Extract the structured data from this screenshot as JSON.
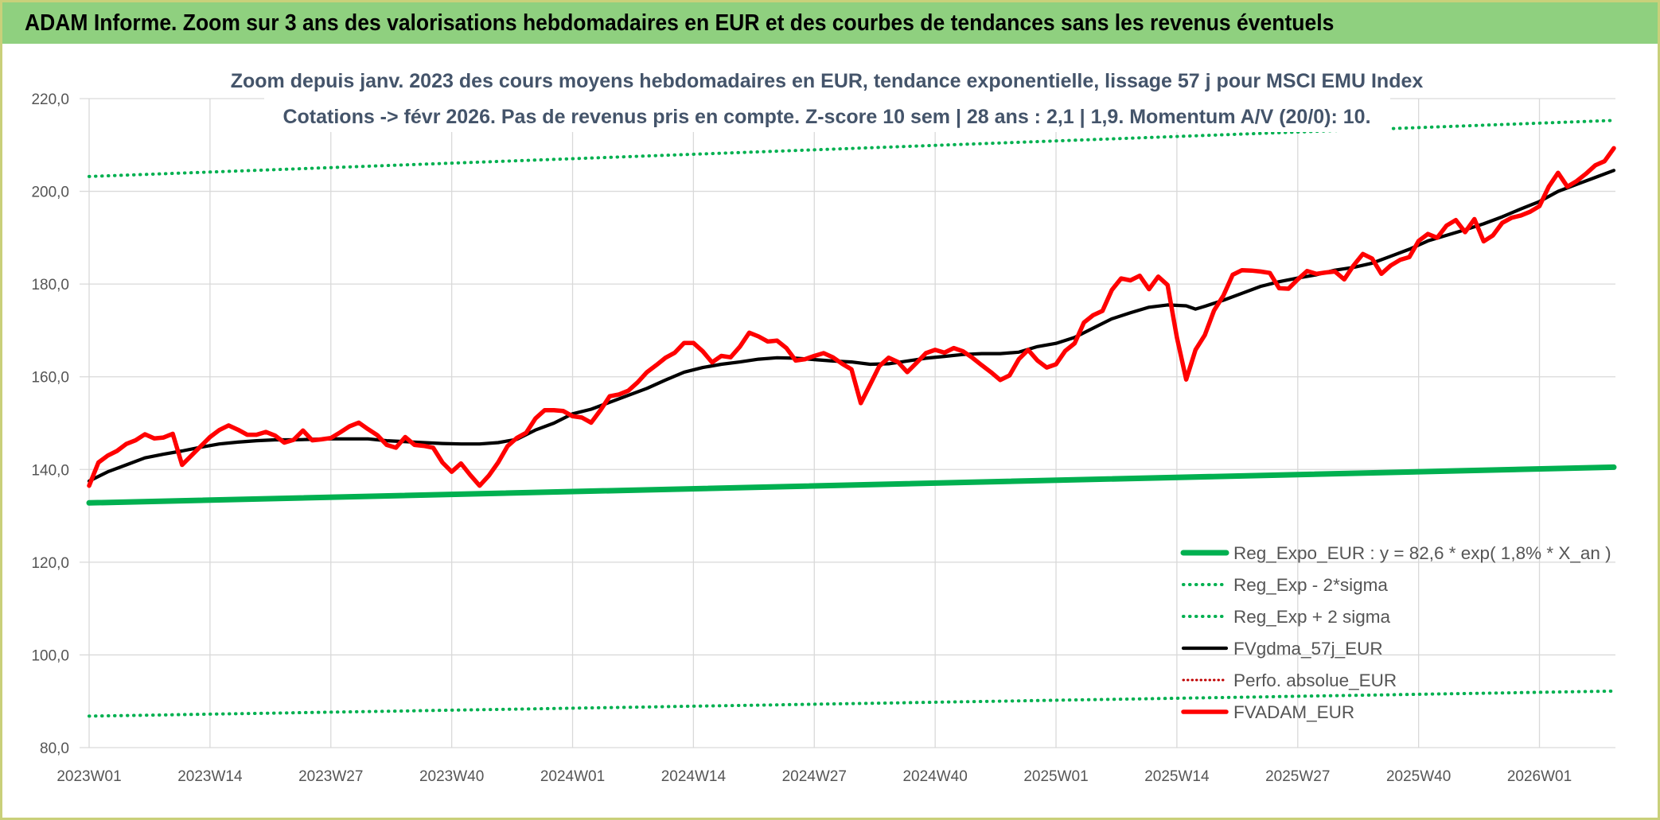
{
  "header": {
    "title": "ADAM Informe. Zoom sur 3 ans des valorisations hebdomadaires en EUR et des courbes de tendances sans les revenus éventuels"
  },
  "chart_data": {
    "type": "line",
    "title_lines": [
      "Zoom depuis janv. 2023 des cours moyens hebdomadaires en EUR, tendance exponentielle, lissage 57 j pour MSCI EMU Index",
      "Cotations -> févr 2026. Pas de revenus pris en compte. Z-score 10 sem | 28 ans : 2,1 | 1,9. Momentum A/V (20/0): 10."
    ],
    "x_tick_labels": [
      "2023W01",
      "2023W14",
      "2023W27",
      "2023W40",
      "2024W01",
      "2024W14",
      "2024W27",
      "2024W40",
      "2025W01",
      "2025W14",
      "2025W27",
      "2025W40",
      "2026W01"
    ],
    "x_tick_weeks": [
      0,
      13,
      26,
      39,
      52,
      65,
      78,
      91,
      104,
      117,
      130,
      143,
      156
    ],
    "weeks_total": 164,
    "y_tick_labels": [
      "80,0",
      "100,0",
      "120,0",
      "140,0",
      "160,0",
      "180,0",
      "200,0",
      "220,0"
    ],
    "y_ticks": [
      80,
      100,
      120,
      140,
      160,
      180,
      200,
      220
    ],
    "ylim": [
      80,
      220
    ],
    "grid": true,
    "legend_position": "bottom-right",
    "colors": {
      "reg_expo": "#00b050",
      "sigma": "#00b050",
      "gdma": "#000000",
      "perfo": "#c00000",
      "adam": "#ff0000",
      "grid": "#d9d9d9"
    },
    "series": [
      {
        "key": "reg_expo",
        "name": "Reg_Expo_EUR : y = 82,6 * exp( 1,8% *  X_an )",
        "style": "solid-thick",
        "points": [
          [
            0,
            132.8
          ],
          [
            164,
            140.5
          ]
        ]
      },
      {
        "key": "minus_2sigma",
        "name": "Reg_Exp - 2*sigma",
        "style": "dotted",
        "points": [
          [
            0,
            86.8
          ],
          [
            164,
            92.2
          ]
        ]
      },
      {
        "key": "plus_2sigma",
        "name": "Reg_Exp + 2 sigma",
        "style": "dotted",
        "points": [
          [
            0,
            203.2
          ],
          [
            164,
            215.3
          ]
        ]
      },
      {
        "key": "gdma",
        "name": "FVgdma_57j_EUR",
        "style": "solid",
        "points": [
          [
            0,
            137.5
          ],
          [
            2,
            139.5
          ],
          [
            4,
            141
          ],
          [
            6,
            142.5
          ],
          [
            8,
            143.3
          ],
          [
            10,
            144
          ],
          [
            12,
            144.8
          ],
          [
            14,
            145.5
          ],
          [
            16,
            145.9
          ],
          [
            18,
            146.2
          ],
          [
            20,
            146.4
          ],
          [
            22,
            146.4
          ],
          [
            24,
            146.5
          ],
          [
            26,
            146.6
          ],
          [
            28,
            146.6
          ],
          [
            30,
            146.6
          ],
          [
            32,
            146.2
          ],
          [
            34,
            146
          ],
          [
            36,
            145.8
          ],
          [
            38,
            145.6
          ],
          [
            40,
            145.5
          ],
          [
            42,
            145.5
          ],
          [
            44,
            145.8
          ],
          [
            46,
            146.5
          ],
          [
            48,
            148.5
          ],
          [
            50,
            150
          ],
          [
            52,
            152
          ],
          [
            54,
            153
          ],
          [
            56,
            154.5
          ],
          [
            58,
            156
          ],
          [
            60,
            157.5
          ],
          [
            62,
            159.3
          ],
          [
            64,
            161
          ],
          [
            66,
            162
          ],
          [
            68,
            162.7
          ],
          [
            70,
            163.2
          ],
          [
            72,
            163.8
          ],
          [
            74,
            164.1
          ],
          [
            76,
            164
          ],
          [
            78,
            163.7
          ],
          [
            80,
            163.4
          ],
          [
            82,
            163.2
          ],
          [
            84,
            162.7
          ],
          [
            86,
            162.8
          ],
          [
            88,
            163.4
          ],
          [
            90,
            164
          ],
          [
            92,
            164.4
          ],
          [
            94,
            164.8
          ],
          [
            96,
            165
          ],
          [
            98,
            165
          ],
          [
            100,
            165.3
          ],
          [
            102,
            166.5
          ],
          [
            104,
            167.2
          ],
          [
            106,
            168.5
          ],
          [
            108,
            170.5
          ],
          [
            110,
            172.5
          ],
          [
            112,
            173.8
          ],
          [
            114,
            175
          ],
          [
            116,
            175.5
          ],
          [
            118,
            175.3
          ],
          [
            119,
            174.6
          ],
          [
            120,
            175.2
          ],
          [
            122,
            176.5
          ],
          [
            124,
            178
          ],
          [
            126,
            179.5
          ],
          [
            128,
            180.5
          ],
          [
            130,
            181.3
          ],
          [
            132,
            182
          ],
          [
            134,
            183
          ],
          [
            136,
            183.6
          ],
          [
            138,
            184.5
          ],
          [
            140,
            186
          ],
          [
            142,
            187.5
          ],
          [
            144,
            189.3
          ],
          [
            146,
            190.5
          ],
          [
            148,
            191.7
          ],
          [
            150,
            193
          ],
          [
            152,
            194.5
          ],
          [
            154,
            196.2
          ],
          [
            156,
            197.8
          ],
          [
            158,
            200
          ],
          [
            160,
            201.5
          ],
          [
            162,
            203
          ],
          [
            164,
            204.5
          ]
        ]
      },
      {
        "key": "perfo",
        "name": "Perfo. absolue_EUR",
        "style": "dotted",
        "points": []
      },
      {
        "key": "adam",
        "name": "FVADAM_EUR",
        "style": "solid-thick",
        "points": [
          [
            0,
            136.5
          ],
          [
            1,
            141.5
          ],
          [
            2,
            143
          ],
          [
            3,
            144
          ],
          [
            4,
            145.5
          ],
          [
            5,
            146.3
          ],
          [
            6,
            147.6
          ],
          [
            7,
            146.7
          ],
          [
            8,
            146.9
          ],
          [
            9,
            147.7
          ],
          [
            10,
            141
          ],
          [
            11,
            143
          ],
          [
            12,
            145
          ],
          [
            13,
            147
          ],
          [
            14,
            148.5
          ],
          [
            15,
            149.5
          ],
          [
            16,
            148.6
          ],
          [
            17,
            147.5
          ],
          [
            18,
            147.5
          ],
          [
            19,
            148.1
          ],
          [
            20,
            147.3
          ],
          [
            21,
            145.8
          ],
          [
            22,
            146.4
          ],
          [
            23,
            148.4
          ],
          [
            24,
            146.3
          ],
          [
            25,
            146.5
          ],
          [
            26,
            146.8
          ],
          [
            27,
            148
          ],
          [
            28,
            149.3
          ],
          [
            29,
            150.1
          ],
          [
            30,
            148.7
          ],
          [
            31,
            147.4
          ],
          [
            32,
            145.3
          ],
          [
            33,
            144.7
          ],
          [
            34,
            147
          ],
          [
            35,
            145.3
          ],
          [
            36,
            145.1
          ],
          [
            37,
            144.7
          ],
          [
            38,
            141.5
          ],
          [
            39,
            139.5
          ],
          [
            40,
            141.3
          ],
          [
            41,
            138.8
          ],
          [
            42,
            136.5
          ],
          [
            43,
            138.7
          ],
          [
            44,
            141.5
          ],
          [
            45,
            145
          ],
          [
            46,
            146.8
          ],
          [
            47,
            147.9
          ],
          [
            48,
            151
          ],
          [
            49,
            152.8
          ],
          [
            50,
            152.8
          ],
          [
            51,
            152.6
          ],
          [
            52,
            151.5
          ],
          [
            53,
            151.2
          ],
          [
            54,
            150.1
          ],
          [
            55,
            152.8
          ],
          [
            56,
            155.8
          ],
          [
            57,
            156.2
          ],
          [
            58,
            157
          ],
          [
            59,
            158.8
          ],
          [
            60,
            161
          ],
          [
            61,
            162.5
          ],
          [
            62,
            164.1
          ],
          [
            63,
            165.2
          ],
          [
            64,
            167.3
          ],
          [
            65,
            167.3
          ],
          [
            66,
            165.5
          ],
          [
            67,
            163.1
          ],
          [
            68,
            164.5
          ],
          [
            69,
            164.2
          ],
          [
            70,
            166.5
          ],
          [
            71,
            169.5
          ],
          [
            72,
            168.7
          ],
          [
            73,
            167.6
          ],
          [
            74,
            167.8
          ],
          [
            75,
            166.2
          ],
          [
            76,
            163.5
          ],
          [
            77,
            163.8
          ],
          [
            78,
            164.5
          ],
          [
            79,
            165.1
          ],
          [
            80,
            164.2
          ],
          [
            81,
            162.8
          ],
          [
            82,
            161.6
          ],
          [
            83,
            154.3
          ],
          [
            84,
            158.3
          ],
          [
            85,
            162.3
          ],
          [
            86,
            164.1
          ],
          [
            87,
            163.2
          ],
          [
            88,
            161
          ],
          [
            89,
            163
          ],
          [
            90,
            165.1
          ],
          [
            91,
            165.8
          ],
          [
            92,
            165.2
          ],
          [
            93,
            166.2
          ],
          [
            94,
            165.5
          ],
          [
            95,
            164.1
          ],
          [
            96,
            162.5
          ],
          [
            97,
            161
          ],
          [
            98,
            159.3
          ],
          [
            99,
            160.3
          ],
          [
            100,
            163.8
          ],
          [
            101,
            165.8
          ],
          [
            102,
            163.5
          ],
          [
            103,
            162
          ],
          [
            104,
            162.7
          ],
          [
            105,
            165.6
          ],
          [
            106,
            167.2
          ],
          [
            107,
            171.7
          ],
          [
            108,
            173.3
          ],
          [
            109,
            174.2
          ],
          [
            110,
            178.7
          ],
          [
            111,
            181.2
          ],
          [
            112,
            180.8
          ],
          [
            113,
            181.8
          ],
          [
            114,
            178.9
          ],
          [
            115,
            181.6
          ],
          [
            116,
            179.8
          ],
          [
            117,
            168.5
          ],
          [
            118,
            159.4
          ],
          [
            119,
            165.8
          ],
          [
            120,
            169
          ],
          [
            121,
            174.3
          ],
          [
            122,
            177.5
          ],
          [
            123,
            182
          ],
          [
            124,
            183
          ],
          [
            125,
            182.9
          ],
          [
            126,
            182.7
          ],
          [
            127,
            182.4
          ],
          [
            128,
            179.1
          ],
          [
            129,
            179
          ],
          [
            130,
            181
          ],
          [
            131,
            182.8
          ],
          [
            132,
            182.2
          ],
          [
            133,
            182.5
          ],
          [
            134,
            182.7
          ],
          [
            135,
            181
          ],
          [
            136,
            184
          ],
          [
            137,
            186.5
          ],
          [
            138,
            185.5
          ],
          [
            139,
            182.2
          ],
          [
            140,
            184
          ],
          [
            141,
            185.2
          ],
          [
            142,
            185.8
          ],
          [
            143,
            189.3
          ],
          [
            144,
            190.8
          ],
          [
            145,
            190
          ],
          [
            146,
            192.6
          ],
          [
            147,
            193.8
          ],
          [
            148,
            191.2
          ],
          [
            149,
            194
          ],
          [
            150,
            189.2
          ],
          [
            151,
            190.5
          ],
          [
            152,
            193.2
          ],
          [
            153,
            194.3
          ],
          [
            154,
            194.8
          ],
          [
            155,
            195.6
          ],
          [
            156,
            196.8
          ],
          [
            157,
            201
          ],
          [
            158,
            204
          ],
          [
            159,
            201
          ],
          [
            160,
            202.2
          ],
          [
            161,
            203.8
          ],
          [
            162,
            205.6
          ],
          [
            163,
            206.5
          ],
          [
            164,
            209.3
          ]
        ]
      }
    ]
  }
}
